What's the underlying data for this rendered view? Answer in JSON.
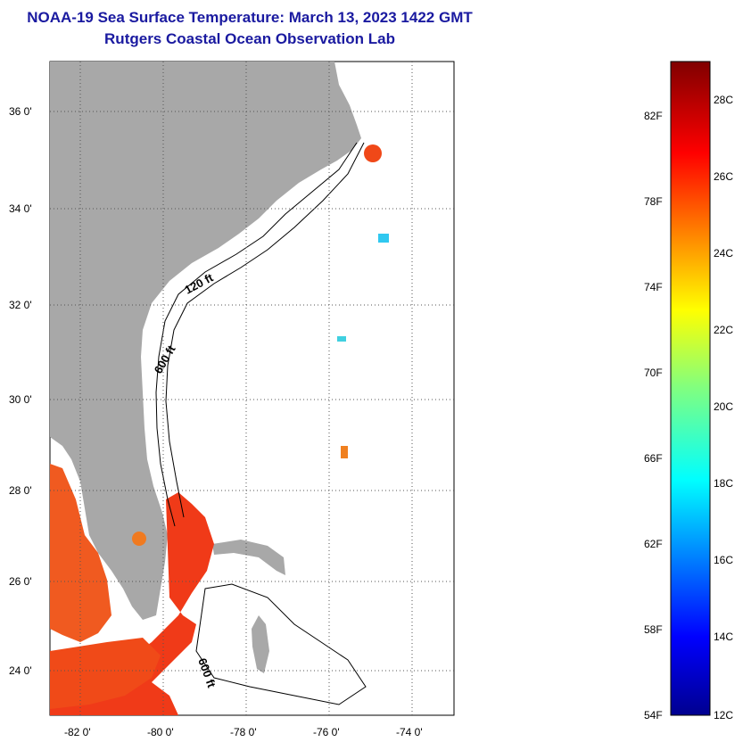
{
  "title": "NOAA-19 Sea Surface Temperature:  March 13, 2023 1422 GMT",
  "subtitle": "Rutgers Coastal Ocean Observation Lab",
  "lat_labels": [
    "36 0'",
    "34 0'",
    "32 0'",
    "30 0'",
    "28 0'",
    "26 0'",
    "24 0'"
  ],
  "lon_labels": [
    "-82 0'",
    "-80 0'",
    "-78 0'",
    "-76 0'",
    "-74 0'"
  ],
  "contour_labels": [
    "120 ft",
    "600 ft",
    "600 ft"
  ],
  "colorbar": {
    "fahrenheit_labels": [
      "82F",
      "78F",
      "74F",
      "70F",
      "66F",
      "62F",
      "58F",
      "54F"
    ],
    "celsius_labels": [
      "28C",
      "26C",
      "24C",
      "22C",
      "20C",
      "18C",
      "16C",
      "14C",
      "12C"
    ],
    "min_c": 12,
    "max_c": 29
  },
  "colors": {
    "land": "#a8a8a8",
    "title": "#1a1aa0",
    "warm": "#f03010"
  }
}
